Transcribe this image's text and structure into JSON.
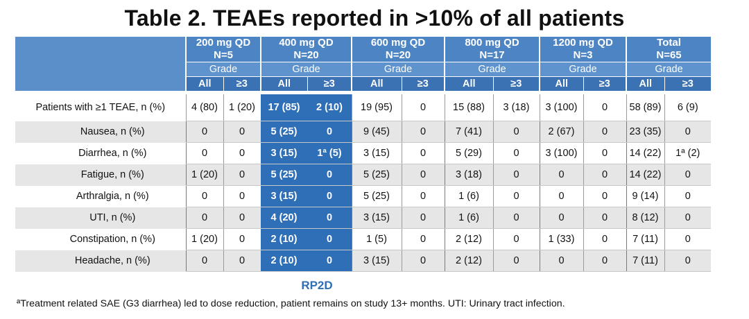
{
  "title": "Table 2. TEAEs reported in >10% of all patients",
  "header": {
    "groups": [
      {
        "dose": "200 mg QD",
        "n": "N=5"
      },
      {
        "dose": "400 mg QD",
        "n": "N=20"
      },
      {
        "dose": "600 mg QD",
        "n": "N=20"
      },
      {
        "dose": "800 mg QD",
        "n": "N=17"
      },
      {
        "dose": "1200 mg QD",
        "n": "N=3"
      },
      {
        "dose": "Total",
        "n": "N=65"
      }
    ],
    "grade_label": "Grade",
    "sub_all": "All",
    "sub_ge3": "≥3"
  },
  "rows": [
    {
      "label": "Patients with ≥1 TEAE, n (%)",
      "values": [
        "4 (80)",
        "1 (20)",
        "17 (85)",
        "2 (10)",
        "19 (95)",
        "0",
        "15 (88)",
        "3 (18)",
        "3 (100)",
        "0",
        "58 (89)",
        "6 (9)"
      ]
    },
    {
      "label": "Nausea, n (%)",
      "values": [
        "0",
        "0",
        "5 (25)",
        "0",
        "9 (45)",
        "0",
        "7 (41)",
        "0",
        "2 (67)",
        "0",
        "23 (35)",
        "0"
      ]
    },
    {
      "label": "Diarrhea, n (%)",
      "values": [
        "0",
        "0",
        "3 (15)",
        "1ª (5)",
        "3 (15)",
        "0",
        "5 (29)",
        "0",
        "3 (100)",
        "0",
        "14 (22)",
        "1ª (2)"
      ]
    },
    {
      "label": "Fatigue, n (%)",
      "values": [
        "1 (20)",
        "0",
        "5 (25)",
        "0",
        "5 (25)",
        "0",
        "3 (18)",
        "0",
        "0",
        "0",
        "14 (22)",
        "0"
      ]
    },
    {
      "label": "Arthralgia, n (%)",
      "values": [
        "0",
        "0",
        "3 (15)",
        "0",
        "5 (25)",
        "0",
        "1 (6)",
        "0",
        "0",
        "0",
        "9 (14)",
        "0"
      ]
    },
    {
      "label": "UTI, n (%)",
      "values": [
        "0",
        "0",
        "4 (20)",
        "0",
        "3 (15)",
        "0",
        "1 (6)",
        "0",
        "0",
        "0",
        "8 (12)",
        "0"
      ]
    },
    {
      "label": "Constipation, n (%)",
      "values": [
        "1 (20)",
        "0",
        "2 (10)",
        "0",
        "1 (5)",
        "0",
        "2 (12)",
        "0",
        "1 (33)",
        "0",
        "7 (11)",
        "0"
      ]
    },
    {
      "label": "Headache, n (%)",
      "values": [
        "0",
        "0",
        "2 (10)",
        "0",
        "3 (15)",
        "0",
        "2 (12)",
        "0",
        "0",
        "0",
        "7 (11)",
        "0"
      ]
    }
  ],
  "highlight_label": "RP2D",
  "footnote": "ªTreatment related SAE (G3 diarrhea) led to dose reduction, patient remains on study 13+ months. UTI: Urinary tract infection.",
  "colors": {
    "header": "#4d84c4",
    "highlight": "#2f6fb7",
    "stripe": "#e6e6e6"
  }
}
